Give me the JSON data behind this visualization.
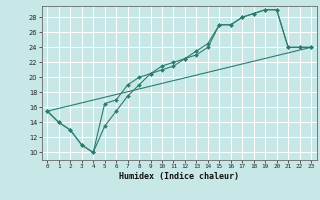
{
  "title": "",
  "xlabel": "Humidex (Indice chaleur)",
  "ylabel": "",
  "xlim": [
    -0.5,
    23.5
  ],
  "ylim": [
    9,
    29.5
  ],
  "yticks": [
    10,
    12,
    14,
    16,
    18,
    20,
    22,
    24,
    26,
    28
  ],
  "xticks": [
    0,
    1,
    2,
    3,
    4,
    5,
    6,
    7,
    8,
    9,
    10,
    11,
    12,
    13,
    14,
    15,
    16,
    17,
    18,
    19,
    20,
    21,
    22,
    23
  ],
  "color": "#2a7d6e",
  "bg_color": "#c8e8e8",
  "grid_color": "#ffffff",
  "line1_x": [
    0,
    1,
    2,
    3,
    4,
    5,
    6,
    7,
    8,
    9,
    10,
    11,
    12,
    13,
    14,
    15,
    16,
    17,
    18,
    19,
    20,
    21,
    22,
    23
  ],
  "line1_y": [
    15.5,
    14.0,
    13.0,
    11.0,
    10.0,
    16.5,
    17.0,
    19.0,
    20.0,
    20.5,
    21.0,
    21.5,
    22.5,
    23.5,
    24.5,
    27.0,
    27.0,
    28.0,
    28.5,
    29.0,
    29.0,
    24.0,
    24.0,
    24.0
  ],
  "line2_x": [
    0,
    1,
    2,
    3,
    4,
    5,
    6,
    7,
    8,
    9,
    10,
    11,
    12,
    13,
    14,
    15,
    16,
    17,
    18,
    19,
    20,
    21,
    22,
    23
  ],
  "line2_y": [
    15.5,
    14.0,
    13.0,
    11.0,
    10.0,
    13.5,
    15.5,
    17.5,
    19.0,
    20.5,
    21.5,
    22.0,
    22.5,
    23.0,
    24.0,
    27.0,
    27.0,
    28.0,
    28.5,
    29.0,
    29.0,
    24.0,
    24.0,
    24.0
  ],
  "line3_x": [
    0,
    23
  ],
  "line3_y": [
    15.5,
    24.0
  ]
}
